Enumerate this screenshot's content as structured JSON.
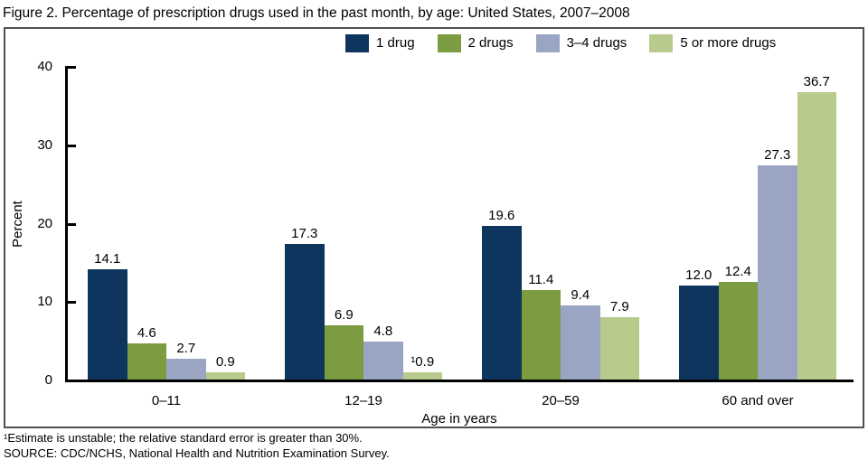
{
  "chart_data": {
    "type": "bar",
    "title": "Figure 2. Percentage of prescription drugs used in the past month, by age: United States, 2007–2008",
    "categories": [
      "0–11",
      "12–19",
      "20–59",
      "60 and over"
    ],
    "series": [
      {
        "name": "1 drug",
        "color": "#0e355d",
        "values": [
          14.1,
          17.3,
          19.6,
          12.0
        ],
        "labels": [
          "14.1",
          "17.3",
          "19.6",
          "12.0"
        ]
      },
      {
        "name": "2 drugs",
        "color": "#7b9c41",
        "values": [
          4.6,
          6.9,
          11.4,
          12.4
        ],
        "labels": [
          "4.6",
          "6.9",
          "11.4",
          "12.4"
        ]
      },
      {
        "name": "3–4 drugs",
        "color": "#9aa5c4",
        "values": [
          2.7,
          4.8,
          9.4,
          27.3
        ],
        "labels": [
          "2.7",
          "4.8",
          "9.4",
          "27.3"
        ]
      },
      {
        "name": "5 or more drugs",
        "color": "#b8ca8c",
        "values": [
          0.9,
          0.9,
          7.9,
          36.7
        ],
        "labels": [
          "0.9",
          "¹0.9",
          "7.9",
          "36.7"
        ]
      }
    ],
    "xlabel": "Age in years",
    "ylabel": "Percent",
    "ylim": [
      0,
      40
    ],
    "yticks": [
      0,
      10,
      20,
      30,
      40
    ],
    "legend_position": "top",
    "grid": false,
    "axis_color": "#000000",
    "frame_color": "#4f5052"
  },
  "footnotes": {
    "note1": "¹Estimate is unstable; the relative standard error is greater than 30%.",
    "source": "SOURCE: CDC/NCHS, National Health and Nutrition Examination Survey."
  }
}
